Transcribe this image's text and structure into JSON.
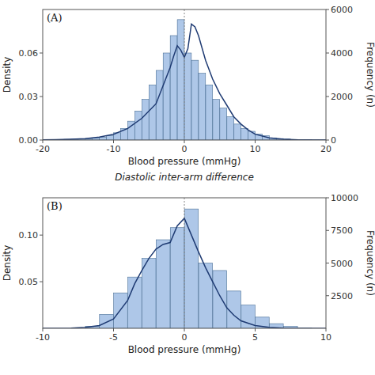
{
  "chart_data": [
    {
      "type": "bar",
      "title": "(A)",
      "subtitle": "Diastolic inter-arm difference",
      "xlabel": "Blood pressure (mmHg)",
      "ylabel": "Density",
      "y2label": "Frequency (n)",
      "xlim": [
        -20,
        20
      ],
      "xticks": [
        -20,
        -10,
        0,
        10,
        20
      ],
      "ylim": [
        0,
        0.09
      ],
      "yticks": [
        {
          "value": 0.0,
          "label": "0.00"
        },
        0.03,
        0.06
      ],
      "y2lim": [
        0,
        6000
      ],
      "y2ticks": [
        0,
        2000,
        4000,
        6000
      ],
      "vline": 0,
      "series": [
        {
          "type": "bar",
          "x": [
            -19.5,
            -18.5,
            -17.5,
            -16.5,
            -15.5,
            -14.5,
            -13.5,
            -12.5,
            -11.5,
            -10.5,
            -9.5,
            -8.5,
            -7.5,
            -6.5,
            -5.5,
            -4.5,
            -3.5,
            -2.5,
            -1.5,
            -0.5,
            0.5,
            1.5,
            2.5,
            3.5,
            4.5,
            5.5,
            6.5,
            7.5,
            8.5,
            9.5,
            10.5,
            11.5,
            12.5,
            13.5,
            14.5,
            15.5,
            16.5,
            17.5,
            18.5,
            19.5
          ],
          "values": [
            0.0002,
            0.0003,
            0.0004,
            0.0005,
            0.0006,
            0.0008,
            0.001,
            0.0015,
            0.002,
            0.003,
            0.005,
            0.008,
            0.013,
            0.02,
            0.028,
            0.038,
            0.048,
            0.06,
            0.072,
            0.083,
            0.06,
            0.055,
            0.046,
            0.038,
            0.028,
            0.022,
            0.016,
            0.011,
            0.008,
            0.006,
            0.004,
            0.003,
            0.0015,
            0.001,
            0.0007,
            0.0004,
            0.0003,
            0.0002,
            0.0001,
            5e-05
          ]
        },
        {
          "type": "line",
          "x": [
            -20,
            -18,
            -16,
            -14,
            -12,
            -10,
            -8,
            -6,
            -4,
            -2,
            -1.5,
            -1,
            -0.5,
            0,
            0.5,
            1,
            1.5,
            2,
            3,
            4,
            5,
            6,
            7,
            8,
            9,
            10,
            12,
            14,
            16,
            18,
            20
          ],
          "values": [
            0.0001,
            0.0003,
            0.0006,
            0.001,
            0.002,
            0.004,
            0.008,
            0.015,
            0.025,
            0.05,
            0.058,
            0.065,
            0.062,
            0.057,
            0.063,
            0.08,
            0.078,
            0.072,
            0.055,
            0.042,
            0.032,
            0.024,
            0.016,
            0.011,
            0.007,
            0.004,
            0.0015,
            0.0005,
            0.0001,
            3e-05,
            5e-06
          ]
        }
      ]
    },
    {
      "type": "bar",
      "title": "(B)",
      "xlabel": "Blood pressure (mmHg)",
      "ylabel": "Density",
      "y2label": "Frequency (n)",
      "xlim": [
        -10,
        10
      ],
      "xticks": [
        -10,
        -5,
        0,
        5,
        10
      ],
      "ylim": [
        0,
        0.14
      ],
      "yticks": [
        0.05,
        {
          "value": 0.1,
          "label": "0.10"
        }
      ],
      "y2lim": [
        0,
        10000
      ],
      "y2ticks": [
        2500,
        5000,
        7500,
        10000
      ],
      "vline": 0,
      "series": [
        {
          "type": "bar",
          "x": [
            -9.5,
            -8.5,
            -7.5,
            -6.5,
            -5.5,
            -4.5,
            -3.5,
            -2.5,
            -1.5,
            -0.5,
            0.5,
            1.5,
            2.5,
            3.5,
            4.5,
            5.5,
            6.5,
            7.5,
            8.5,
            9.5
          ],
          "values": [
            0.0,
            0.0,
            0.0,
            0.002,
            0.015,
            0.038,
            0.055,
            0.075,
            0.095,
            0.108,
            0.128,
            0.07,
            0.062,
            0.04,
            0.025,
            0.012,
            0.005,
            0.002,
            0.0005,
            0.0
          ]
        },
        {
          "type": "line",
          "x": [
            -10,
            -8,
            -7,
            -6,
            -5,
            -4,
            -3.5,
            -3,
            -2.5,
            -2,
            -1.5,
            -1,
            -0.5,
            0,
            0.5,
            1,
            1.5,
            2,
            2.5,
            3,
            3.5,
            4,
            5,
            6,
            7,
            8,
            9,
            10
          ],
          "values": [
            0.0001,
            0.0003,
            0.001,
            0.003,
            0.01,
            0.03,
            0.048,
            0.062,
            0.075,
            0.085,
            0.09,
            0.092,
            0.11,
            0.118,
            0.1,
            0.082,
            0.065,
            0.05,
            0.035,
            0.022,
            0.014,
            0.008,
            0.003,
            0.001,
            0.0003,
            0.0001,
            3e-05,
            5e-06
          ]
        }
      ]
    }
  ]
}
